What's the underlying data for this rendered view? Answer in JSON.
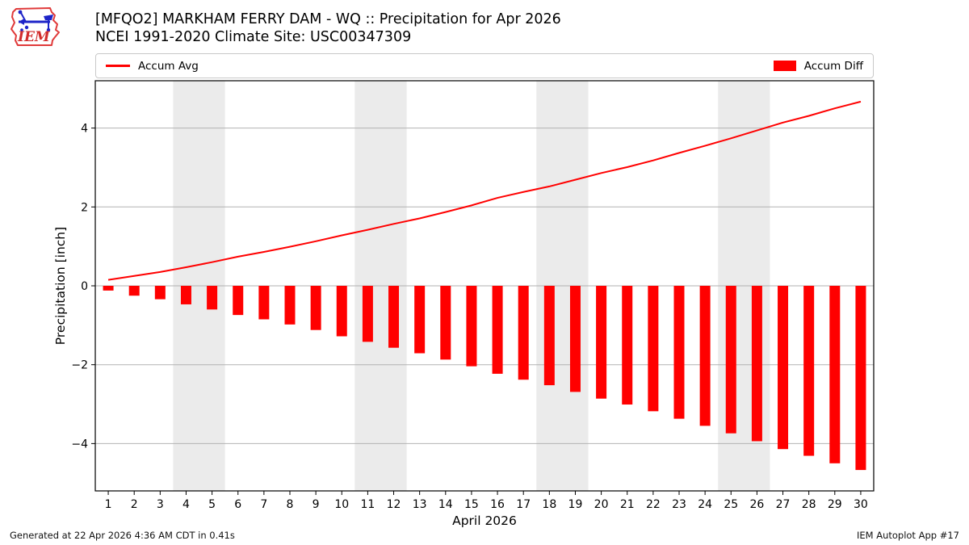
{
  "header": {
    "title": "[MFQO2] MARKHAM FERRY DAM - WQ :: Precipitation for Apr 2026",
    "subtitle": "NCEI 1991-2020 Climate Site: USC00347309",
    "logo_text": "IEM"
  },
  "legend": {
    "items": [
      {
        "label": "Accum Avg",
        "swatch": "line",
        "color": "#ff0000"
      },
      {
        "label": "Accum Diff",
        "swatch": "rect",
        "color": "#ff0000"
      }
    ]
  },
  "footer": {
    "left": "Generated at 22 Apr 2026 4:36 AM CDT in 0.41s",
    "right": "IEM Autoplot App #17"
  },
  "chart_data": {
    "type": "line+bar",
    "title": "[MFQO2] MARKHAM FERRY DAM - WQ :: Precipitation for Apr 2026",
    "subtitle": "NCEI 1991-2020 Climate Site: USC00347309",
    "xlabel": "April 2026",
    "ylabel": "Precipitation [inch]",
    "x": [
      1,
      2,
      3,
      4,
      5,
      6,
      7,
      8,
      9,
      10,
      11,
      12,
      13,
      14,
      15,
      16,
      17,
      18,
      19,
      20,
      21,
      22,
      23,
      24,
      25,
      26,
      27,
      28,
      29,
      30
    ],
    "series": [
      {
        "name": "Accum Avg",
        "type": "line",
        "color": "#ff0000",
        "values": [
          0.15,
          0.25,
          0.35,
          0.47,
          0.6,
          0.74,
          0.86,
          0.99,
          1.13,
          1.28,
          1.42,
          1.57,
          1.71,
          1.87,
          2.04,
          2.23,
          2.38,
          2.52,
          2.69,
          2.86,
          3.01,
          3.18,
          3.37,
          3.55,
          3.74,
          3.94,
          4.14,
          4.31,
          4.5,
          4.67
        ]
      },
      {
        "name": "Accum Diff",
        "type": "bar",
        "color": "#ff0000",
        "values": [
          -0.12,
          -0.25,
          -0.34,
          -0.47,
          -0.6,
          -0.74,
          -0.85,
          -0.98,
          -1.12,
          -1.28,
          -1.42,
          -1.57,
          -1.71,
          -1.87,
          -2.04,
          -2.23,
          -2.38,
          -2.52,
          -2.69,
          -2.86,
          -3.01,
          -3.18,
          -3.37,
          -3.55,
          -3.74,
          -3.94,
          -4.14,
          -4.31,
          -4.5,
          -4.67
        ]
      }
    ],
    "ylim": [
      -5.2,
      5.2
    ],
    "yticks": [
      -4,
      -2,
      0,
      2,
      4
    ],
    "grid": true,
    "grid_color": "#b2b2b2",
    "weekend_bands": [
      [
        3.5,
        5.5
      ],
      [
        10.5,
        12.5
      ],
      [
        17.5,
        19.5
      ],
      [
        24.5,
        26.5
      ]
    ],
    "band_color": "#ebebeb",
    "legend_position": "top"
  }
}
